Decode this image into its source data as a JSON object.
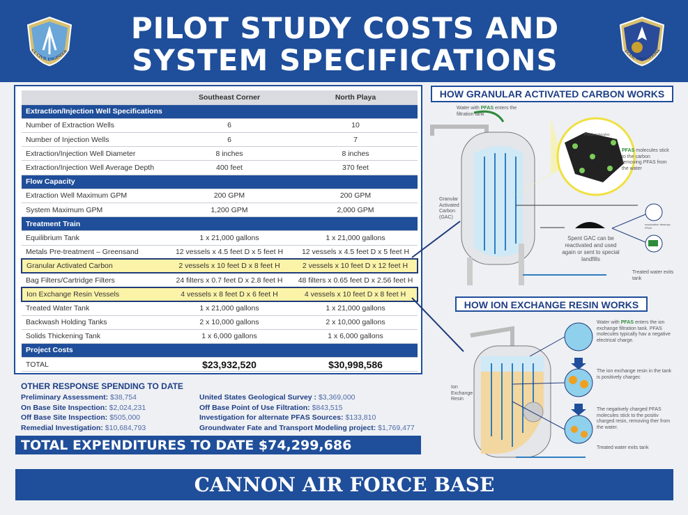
{
  "header": {
    "title_line1": "PILOT STUDY COSTS AND",
    "title_line2": "SYSTEM SPECIFICATIONS",
    "left_logo_text": "AIR FORCE CIVIL ENGINEER CENTER",
    "right_logo_text": "27th SPECIAL OPERATIONS WING"
  },
  "table": {
    "columns": [
      "",
      "Southeast Corner",
      "North Playa"
    ],
    "rows": [
      {
        "type": "section",
        "label": "Extraction/Injection Well Specifications"
      },
      {
        "label": "Number of Extraction Wells",
        "se": "6",
        "np": "10"
      },
      {
        "label": "Number of Injection Wells",
        "se": "6",
        "np": "7"
      },
      {
        "label": "Extraction/Injection Well Diameter",
        "se": "8 inches",
        "np": "8 inches"
      },
      {
        "label": "Extraction/Injection Well Average Depth",
        "se": "400 feet",
        "np": "370 feet"
      },
      {
        "type": "section",
        "label": "Flow Capacity"
      },
      {
        "label": "Extraction Well Maximum GPM",
        "se": "200 GPM",
        "np": "200 GPM"
      },
      {
        "label": "System Maximum GPM",
        "se": "1,200 GPM",
        "np": "2,000 GPM"
      },
      {
        "type": "section",
        "label": "Treatment Train"
      },
      {
        "label": "Equilibrium Tank",
        "se": "1 x 21,000 gallons",
        "np": "1 x 21,000 gallons"
      },
      {
        "label": "Metals Pre-treatment – Greensand",
        "se": "12 vessels x 4.5 feet D x 5 feet H",
        "np": "12 vessels x 4.5 feet D x 5 feet H"
      },
      {
        "type": "highlight",
        "label": "Granular Activated Carbon",
        "se": "2 vessels x 10 feet D x 8 feet H",
        "np": "2 vessels x 10 feet D x 12 feet H"
      },
      {
        "label": "Bag Filters/Cartridge Filters",
        "se": "24 filters x 0.7 feet D x 2.8 feet H",
        "np": "48 filters x 0.65 feet D x 2.56 feet H"
      },
      {
        "type": "highlight",
        "label": "Ion Exchange Resin Vessels",
        "se": "4 vessels x 8 feet D x 6 feet H",
        "np": "4 vessels x 10 feet D x 8 feet H"
      },
      {
        "label": "Treated Water Tank",
        "se": "1 x 21,000 gallons",
        "np": "1 x 21,000 gallons"
      },
      {
        "label": "Backwash Holding Tanks",
        "se": "2 x 10,000 gallons",
        "np": "2 x 10,000 gallons"
      },
      {
        "label": "Solids Thickening Tank",
        "se": "1 x 6,000 gallons",
        "np": "1 x 6,000 gallons"
      },
      {
        "type": "section",
        "label": "Project Costs"
      },
      {
        "type": "total",
        "label": "TOTAL",
        "se": "$23,932,520",
        "np": "$30,998,586"
      }
    ]
  },
  "spending": {
    "title": "OTHER RESPONSE SPENDING TO DATE",
    "left": [
      {
        "label": "Preliminary Assessment:",
        "value": "$38,754"
      },
      {
        "label": "On Base Site Inspection:",
        "value": "$2,024,231"
      },
      {
        "label": "Off Base Site Inspection:",
        "value": "$505,000"
      },
      {
        "label": "Remedial Investigation:",
        "value": "$10,684,793"
      }
    ],
    "right": [
      {
        "label": "United States Geological Survey :",
        "value": "$3,369,000"
      },
      {
        "label": "Off Base Point of Use Filtration:",
        "value": "$843,515"
      },
      {
        "label": "Investigation for alternate PFAS Sources:",
        "value": "$133,810"
      },
      {
        "label": "Groundwater Fate and Transport Modeling project:",
        "value": "$1,769,477"
      }
    ]
  },
  "total_expenditures": "TOTAL EXPENDITURES TO DATE $74,299,686",
  "footer": "CANNON AIR FORCE BASE",
  "gac": {
    "title": "HOW GRANULAR ACTIVATED CARBON WORKS",
    "enter_pre": "Water with ",
    "enter_pfas": "PFAS",
    "enter_post": " enters the filtration tank",
    "molecules": "PFAS molecules",
    "stick_pfas": "PFAS",
    "stick": " molecules stick to the carbon removing PFAS from the water",
    "label": "Granular Activated Carbon (GAC)",
    "spent": "Spent GAC can be reactivated and used again or sent to special landfills",
    "reactivation": "reactivation destroys PFAS",
    "exits": "Treated water exits tank"
  },
  "ix": {
    "title": "HOW ION EXCHANGE RESIN WORKS",
    "step1_pre": "Water with ",
    "step1_pfas": "PFAS",
    "step1_post": " enters the ion exchange filtration tank. PFAS molecules typically hav a negative electrical charge.",
    "step2": "The ion exchange resin in the tank is positively chargec",
    "step3": "The negatively charged PFAS molecules stick to the positiv charged resin, removing ther from the water.",
    "label": "Ion Exchange Resin",
    "exits": "Treated water exits tank"
  },
  "colors": {
    "brand_blue": "#1f4e9a",
    "highlight": "#fbf3a8",
    "pfas_green": "#2e8b3a"
  }
}
